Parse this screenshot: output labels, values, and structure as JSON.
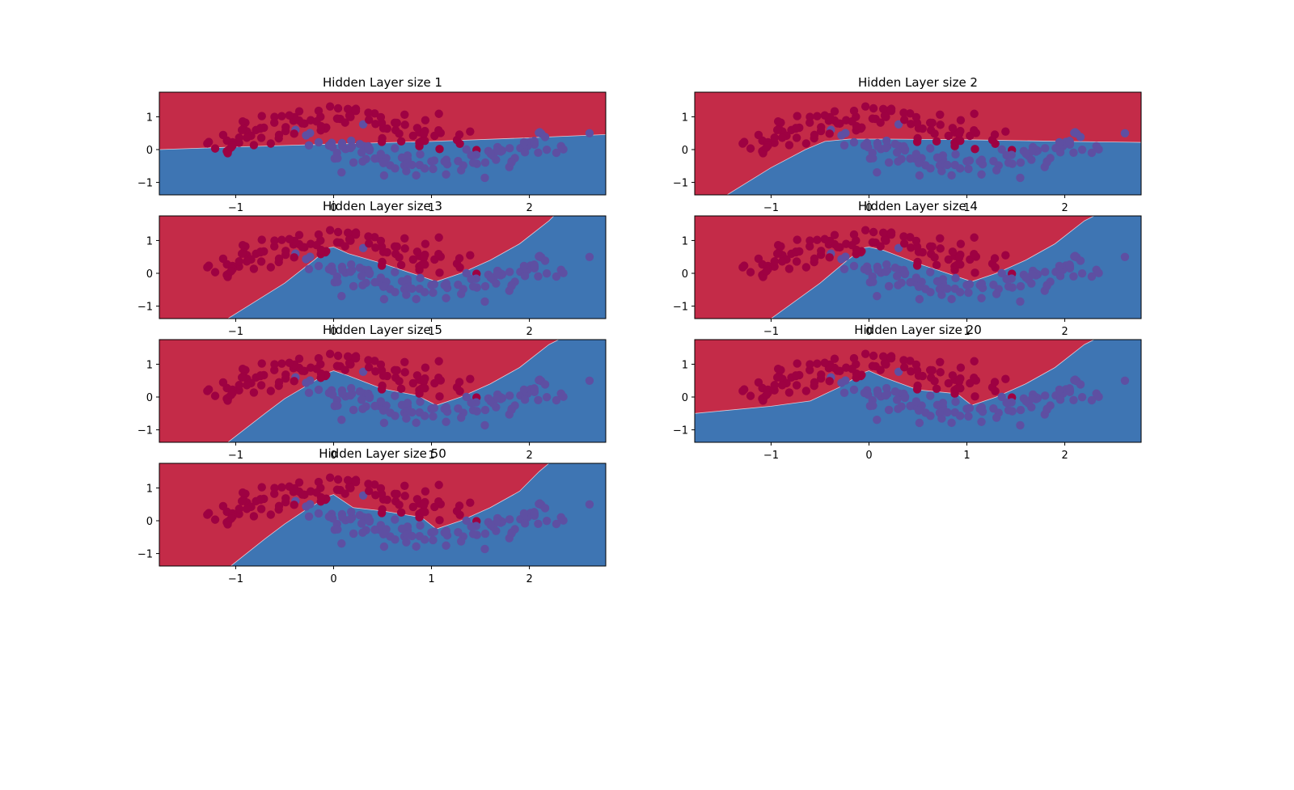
{
  "figure": {
    "colors": {
      "class_0_region": "#c42b48",
      "class_1_region": "#3e75b3",
      "class_0_points": "#9e0142",
      "class_1_points": "#5e4fa2",
      "axes": "#000000"
    }
  },
  "chart_data": [
    {
      "type": "scatter",
      "title": "Hidden Layer size 1",
      "xlim": [
        -1.78,
        2.78
      ],
      "ylim": [
        -1.38,
        1.75
      ],
      "xticks": [
        "−1",
        "0",
        "1",
        "2"
      ],
      "yticks": [
        "−1",
        "0",
        "1"
      ],
      "xtick_values": [
        -1,
        0,
        1,
        2
      ],
      "ytick_values": [
        -1,
        0,
        1
      ],
      "decision_boundary": [
        [
          -1.78,
          0.0
        ],
        [
          -1.0,
          0.08
        ],
        [
          0.0,
          0.17
        ],
        [
          1.0,
          0.25
        ],
        [
          2.0,
          0.36
        ],
        [
          2.78,
          0.46
        ]
      ]
    },
    {
      "type": "scatter",
      "title": "Hidden Layer size 2",
      "xlim": [
        -1.78,
        2.78
      ],
      "ylim": [
        -1.38,
        1.75
      ],
      "xticks": [
        "−1",
        "0",
        "1",
        "2"
      ],
      "yticks": [
        "−1",
        "0",
        "1"
      ],
      "xtick_values": [
        -1,
        0,
        1,
        2
      ],
      "ytick_values": [
        -1,
        0,
        1
      ],
      "decision_boundary": [
        [
          -1.45,
          -1.38
        ],
        [
          -1.0,
          -0.55
        ],
        [
          -0.65,
          0.0
        ],
        [
          -0.45,
          0.25
        ],
        [
          -0.2,
          0.32
        ],
        [
          0.2,
          0.32
        ],
        [
          1.0,
          0.3
        ],
        [
          2.0,
          0.25
        ],
        [
          2.78,
          0.22
        ]
      ]
    },
    {
      "type": "scatter",
      "title": "Hidden Layer size 3",
      "xlim": [
        -1.78,
        2.78
      ],
      "ylim": [
        -1.38,
        1.75
      ],
      "xticks": [
        "−1",
        "0",
        "1",
        "2"
      ],
      "yticks": [
        "−1",
        "0",
        "1"
      ],
      "xtick_values": [
        -1,
        0,
        1,
        2
      ],
      "ytick_values": [
        -1,
        0,
        1
      ],
      "decision_boundary": [
        [
          -1.08,
          -1.38
        ],
        [
          -0.5,
          -0.3
        ],
        [
          -0.2,
          0.4
        ],
        [
          -0.05,
          0.78
        ],
        [
          0.0,
          0.8
        ],
        [
          0.15,
          0.6
        ],
        [
          0.5,
          0.3
        ],
        [
          0.8,
          0.0
        ],
        [
          1.05,
          -0.25
        ],
        [
          1.3,
          0.0
        ],
        [
          1.6,
          0.4
        ],
        [
          1.9,
          0.9
        ],
        [
          2.2,
          1.6
        ],
        [
          2.25,
          1.75
        ]
      ]
    },
    {
      "type": "scatter",
      "title": "Hidden Layer size 4",
      "xlim": [
        -1.78,
        2.78
      ],
      "ylim": [
        -1.38,
        1.75
      ],
      "xticks": [
        "−1",
        "0",
        "1",
        "2"
      ],
      "yticks": [
        "−1",
        "0",
        "1"
      ],
      "xtick_values": [
        -1,
        0,
        1,
        2
      ],
      "ytick_values": [
        -1,
        0,
        1
      ],
      "decision_boundary": [
        [
          -1.0,
          -1.38
        ],
        [
          -0.5,
          -0.3
        ],
        [
          -0.2,
          0.45
        ],
        [
          -0.05,
          0.78
        ],
        [
          0.0,
          0.8
        ],
        [
          0.15,
          0.7
        ],
        [
          0.5,
          0.3
        ],
        [
          0.8,
          0.0
        ],
        [
          1.05,
          -0.25
        ],
        [
          1.3,
          0.0
        ],
        [
          1.6,
          0.4
        ],
        [
          1.9,
          0.9
        ],
        [
          2.2,
          1.6
        ],
        [
          2.3,
          1.75
        ]
      ]
    },
    {
      "type": "scatter",
      "title": "Hidden Layer size 5",
      "xlim": [
        -1.78,
        2.78
      ],
      "ylim": [
        -1.38,
        1.75
      ],
      "xticks": [
        "−1",
        "0",
        "1",
        "2"
      ],
      "yticks": [
        "−1",
        "0",
        "1"
      ],
      "xtick_values": [
        -1,
        0,
        1,
        2
      ],
      "ytick_values": [
        -1,
        0,
        1
      ],
      "decision_boundary": [
        [
          -1.08,
          -1.38
        ],
        [
          -0.7,
          -0.5
        ],
        [
          -0.5,
          -0.05
        ],
        [
          -0.3,
          0.3
        ],
        [
          -0.05,
          0.75
        ],
        [
          0.0,
          0.8
        ],
        [
          0.15,
          0.65
        ],
        [
          0.5,
          0.25
        ],
        [
          0.85,
          0.05
        ],
        [
          1.05,
          -0.25
        ],
        [
          1.3,
          0.0
        ],
        [
          1.6,
          0.4
        ],
        [
          1.9,
          0.9
        ],
        [
          2.2,
          1.6
        ],
        [
          2.3,
          1.75
        ]
      ]
    },
    {
      "type": "scatter",
      "title": "Hidden Layer size 20",
      "xlim": [
        -1.78,
        2.78
      ],
      "ylim": [
        -1.38,
        1.75
      ],
      "xticks": [
        "−1",
        "0",
        "1",
        "2"
      ],
      "yticks": [
        "−1",
        "0",
        "1"
      ],
      "xtick_values": [
        -1,
        0,
        1,
        2
      ],
      "ytick_values": [
        -1,
        0,
        1
      ],
      "decision_boundary": [
        [
          -1.78,
          -0.5
        ],
        [
          -1.0,
          -0.28
        ],
        [
          -0.6,
          -0.12
        ],
        [
          -0.3,
          0.3
        ],
        [
          -0.05,
          0.75
        ],
        [
          0.0,
          0.8
        ],
        [
          0.15,
          0.6
        ],
        [
          0.5,
          0.22
        ],
        [
          0.9,
          0.1
        ],
        [
          1.05,
          -0.25
        ],
        [
          1.3,
          0.0
        ],
        [
          1.6,
          0.4
        ],
        [
          1.9,
          0.9
        ],
        [
          2.2,
          1.6
        ],
        [
          2.3,
          1.75
        ]
      ]
    },
    {
      "type": "scatter",
      "title": "Hidden Layer size 50",
      "xlim": [
        -1.78,
        2.78
      ],
      "ylim": [
        -1.38,
        1.75
      ],
      "xticks": [
        "−1",
        "0",
        "1",
        "2"
      ],
      "yticks": [
        "−1",
        "0",
        "1"
      ],
      "xtick_values": [
        -1,
        0,
        1,
        2
      ],
      "ytick_values": [
        -1,
        0,
        1
      ],
      "decision_boundary": [
        [
          -1.05,
          -1.38
        ],
        [
          -0.7,
          -0.55
        ],
        [
          -0.5,
          -0.1
        ],
        [
          -0.3,
          0.3
        ],
        [
          -0.05,
          0.75
        ],
        [
          0.0,
          0.8
        ],
        [
          0.2,
          0.4
        ],
        [
          0.5,
          0.3
        ],
        [
          0.9,
          0.1
        ],
        [
          1.05,
          -0.25
        ],
        [
          1.3,
          0.0
        ],
        [
          1.6,
          0.4
        ],
        [
          1.9,
          0.9
        ],
        [
          2.1,
          1.5
        ],
        [
          2.2,
          1.75
        ]
      ]
    }
  ]
}
